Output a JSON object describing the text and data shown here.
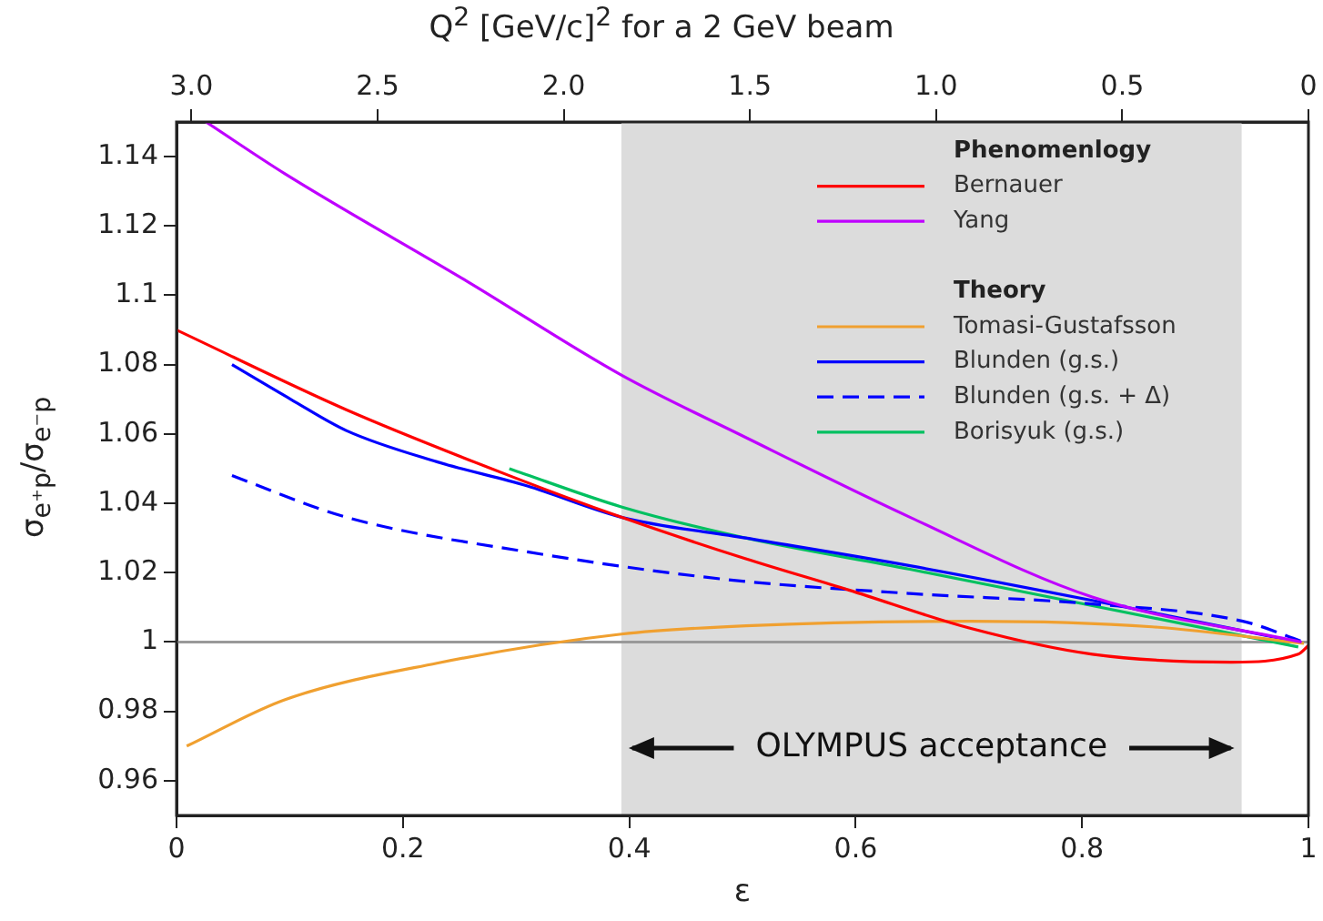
{
  "chart_data": {
    "type": "line",
    "xlabel": "ε",
    "ylabel": "σ$_{e⁺p}$/σ$_{e⁻p}$",
    "x2label": "Q$^{2}$ [GeV/c]$^{2}$ for a 2 GeV beam",
    "xlim": [
      0,
      1
    ],
    "xticks": [
      0,
      0.2,
      0.4,
      0.6,
      0.8,
      1
    ],
    "x2lim": [
      3.04,
      0
    ],
    "x2ticks": [
      {
        "value": 3,
        "label": "3.0"
      },
      {
        "value": 2.5,
        "label": "2.5"
      },
      {
        "value": 2,
        "label": "2.0"
      },
      {
        "value": 1.5,
        "label": "1.5"
      },
      {
        "value": 1,
        "label": "1.0"
      },
      {
        "value": 0.5,
        "label": "0.5"
      },
      0
    ],
    "ylim": [
      0.95,
      1.15
    ],
    "yticks": [
      0.96,
      0.98,
      1,
      1.02,
      1.04,
      1.06,
      1.08,
      1.1,
      1.12,
      1.14
    ],
    "grid": false,
    "legend": "top right",
    "marker": "none",
    "annotations": [
      "Phenomenlogy",
      "Theory"
    ],
    "ref_lines": [
      {
        "axis": "y",
        "value": 1,
        "color": "#999999"
      }
    ],
    "bands": [
      {
        "axis": "x",
        "from": 0.393,
        "to": 0.941,
        "label": "OLYMPUS acceptance",
        "color": "#dcdcdc"
      }
    ],
    "series": [
      {
        "name": "Bernauer",
        "color": "#ff0000",
        "x": [
          0,
          0.15,
          0.294,
          0.393,
          0.503,
          0.594,
          0.701,
          0.809,
          0.932,
          0.991,
          1
        ],
        "values": [
          1.09,
          1.067,
          1.048,
          1.036,
          1.024,
          1.015,
          1.004,
          0.9965,
          0.9942,
          0.9965,
          0.999
        ]
      },
      {
        "name": "Yang",
        "color": "#bf00ff",
        "x": [
          0.026,
          0.096,
          0.257,
          0.393,
          0.503,
          0.648,
          0.809,
          0.994
        ],
        "values": [
          1.15,
          1.135,
          1.104,
          1.077,
          1.059,
          1.036,
          1.013,
          1.0
        ]
      },
      {
        "name": "Tomasi-Gustafsson",
        "color": "#f0a030",
        "x": [
          0.009,
          0.096,
          0.23,
          0.393,
          0.503,
          0.701,
          0.862,
          0.996
        ],
        "values": [
          0.97,
          0.9834,
          0.9939,
          1.0023,
          1.0047,
          1.006,
          1.0044,
          0.9996
        ]
      },
      {
        "name": "Blunden (g.s.)",
        "color": "#0000ff",
        "x": [
          0.049,
          0.101,
          0.15,
          0.23,
          0.31,
          0.393,
          0.503,
          0.648,
          0.809,
          0.991
        ],
        "values": [
          1.08,
          1.07,
          1.061,
          1.052,
          1.045,
          1.036,
          1.03,
          1.022,
          1.012,
          1.0
        ]
      },
      {
        "name": "Blunden (g.s. + Δ)",
        "color": "#0000ff",
        "line_style": "dashed",
        "x": [
          0.049,
          0.15,
          0.31,
          0.487,
          0.648,
          0.809,
          0.942,
          0.996
        ],
        "values": [
          1.048,
          1.036,
          1.026,
          1.018,
          1.014,
          1.011,
          1.006,
          1.0
        ]
      },
      {
        "name": "Borisyuk (g.s.)",
        "color": "#00c060",
        "x": [
          0.294,
          0.393,
          0.503,
          0.648,
          0.809,
          0.991
        ],
        "values": [
          1.05,
          1.039,
          1.03,
          1.021,
          1.0105,
          0.9986
        ]
      }
    ]
  }
}
